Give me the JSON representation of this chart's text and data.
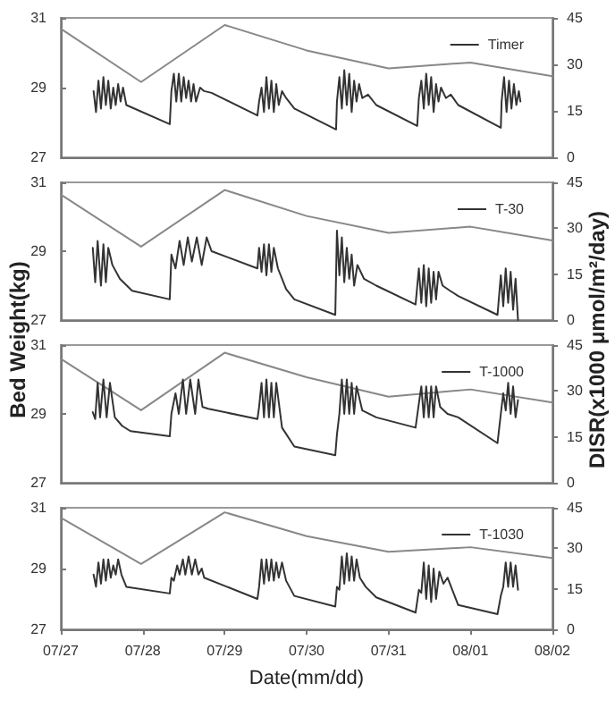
{
  "chart_data": [
    {
      "type": "line",
      "xlim": [
        "--07-27",
        "--08-02"
      ],
      "ylim": [
        27,
        31
      ],
      "yticks": [
        27,
        29,
        31
      ],
      "y2lim": [
        0,
        45
      ],
      "y2ticks": [
        0,
        15,
        30,
        45
      ],
      "tick_labels": "y",
      "legend": "top right",
      "grid": false,
      "marker": "none",
      "series": [
        {
          "name": "Timer",
          "color": "#333333",
          "x": [
            "--07-27T09:36",
            "--07-27T10:19",
            "--07-27T11:02",
            "--07-27T11:46",
            "--07-27T12:29",
            "--07-27T13:12",
            "--07-27T13:55",
            "--07-27T14:38",
            "--07-27T15:22",
            "--07-27T16:05",
            "--07-27T16:48",
            "--07-27T17:31",
            "--07-27T18:14",
            "--07-27T19:12",
            "--07-28T07:55",
            "--07-28T08:24",
            "--07-28T09:07",
            "--07-28T09:50",
            "--07-28T10:34",
            "--07-28T11:17",
            "--07-28T12:00",
            "--07-28T12:43",
            "--07-28T13:26",
            "--07-28T14:10",
            "--07-28T14:53",
            "--07-28T15:36",
            "--07-28T16:48",
            "--07-28T18:00",
            "--07-28T20:10",
            "--07-29T09:36",
            "--07-29T10:05",
            "--07-29T10:48",
            "--07-29T11:31",
            "--07-29T12:14",
            "--07-29T12:58",
            "--07-29T13:41",
            "--07-29T14:24",
            "--07-29T15:07",
            "--07-29T15:50",
            "--07-29T16:48",
            "--07-29T18:00",
            "--07-29T20:24",
            "--07-30T08:38",
            "--07-30T08:53",
            "--07-30T09:36",
            "--07-30T10:19",
            "--07-30T11:02",
            "--07-30T11:46",
            "--07-30T12:29",
            "--07-30T13:12",
            "--07-30T13:55",
            "--07-30T14:38",
            "--07-30T15:22",
            "--07-30T16:19",
            "--07-30T18:00",
            "--07-30T20:24",
            "--07-31T08:24",
            "--07-31T08:53",
            "--07-31T09:36",
            "--07-31T10:19",
            "--07-31T11:02",
            "--07-31T11:46",
            "--07-31T12:29",
            "--07-31T13:12",
            "--07-31T13:55",
            "--07-31T14:38",
            "--07-31T15:22",
            "--07-31T16:48",
            "--07-31T18:14",
            "--07-31T20:24",
            "--08-01T08:53",
            "--08-01T09:07",
            "--08-01T09:50",
            "--08-01T10:34",
            "--08-01T11:17",
            "--08-01T12:00",
            "--08-01T12:43",
            "--08-01T13:26",
            "--08-01T14:10",
            "--08-01T14:38"
          ],
          "values": [
            28.9,
            28.3,
            29.2,
            28.4,
            29.3,
            28.5,
            29.2,
            28.4,
            29.0,
            28.5,
            29.1,
            28.6,
            29.0,
            28.5,
            27.95,
            28.9,
            29.4,
            28.6,
            29.4,
            28.6,
            29.3,
            28.7,
            29.2,
            28.6,
            29.1,
            28.6,
            29.0,
            28.9,
            28.85,
            28.2,
            28.6,
            29.0,
            28.3,
            29.3,
            28.4,
            29.2,
            28.3,
            29.1,
            28.5,
            28.9,
            28.7,
            28.4,
            27.8,
            28.6,
            29.3,
            28.4,
            29.5,
            28.5,
            29.4,
            28.3,
            29.2,
            28.6,
            29.1,
            28.7,
            28.8,
            28.5,
            27.9,
            28.7,
            29.2,
            28.4,
            29.4,
            28.5,
            29.3,
            28.3,
            29.1,
            28.6,
            29.0,
            28.7,
            28.8,
            28.5,
            27.85,
            28.6,
            29.3,
            28.3,
            29.2,
            28.4,
            29.1,
            28.5,
            28.9,
            28.6
          ]
        },
        {
          "color": "#888888",
          "axis": "y2",
          "x": [
            "--07-27",
            "--07-27T23:31",
            "--07-29",
            "--07-30",
            "--07-31",
            "--08-01",
            "--08-02"
          ],
          "values": [
            41.5,
            24.3,
            42.7,
            34.5,
            28.7,
            30.6,
            26.2
          ]
        }
      ]
    },
    {
      "type": "line",
      "xlim": [
        "--07-27",
        "--08-02"
      ],
      "ylim": [
        27,
        31
      ],
      "yticks": [
        27,
        29,
        31
      ],
      "y2lim": [
        0,
        45
      ],
      "y2ticks": [
        0,
        15,
        30,
        45
      ],
      "tick_labels": "y",
      "legend": "top right",
      "grid": false,
      "marker": "none",
      "ylabel": "Bed Weight(kg)",
      "y2label": "DISR(x1000 μmol/m²/day)",
      "series": [
        {
          "name": "T-30",
          "color": "#333333",
          "x": [
            "--07-27T09:22",
            "--07-27T10:05",
            "--07-27T10:48",
            "--07-27T11:46",
            "--07-27T12:29",
            "--07-27T13:12",
            "--07-27T13:55",
            "--07-27T15:07",
            "--07-27T17:17",
            "--07-27T20:53",
            "--07-28T07:55",
            "--07-28T08:24",
            "--07-28T09:36",
            "--07-28T10:48",
            "--07-28T12:00",
            "--07-28T13:12",
            "--07-28T14:24",
            "--07-28T15:50",
            "--07-28T17:17",
            "--07-28T18:43",
            "--07-28T20:10",
            "--07-29T09:36",
            "--07-29T10:05",
            "--07-29T10:48",
            "--07-29T11:31",
            "--07-29T12:14",
            "--07-29T12:58",
            "--07-29T13:41",
            "--07-29T14:24",
            "--07-29T15:36",
            "--07-29T18:00",
            "--07-29T20:24",
            "--07-30T08:24",
            "--07-30T08:53",
            "--07-30T09:36",
            "--07-30T10:19",
            "--07-30T11:02",
            "--07-30T11:46",
            "--07-30T12:29",
            "--07-30T13:12",
            "--07-30T13:55",
            "--07-30T14:53",
            "--07-30T16:48",
            "--07-30T20:24",
            "--07-31T07:55",
            "--07-31T08:53",
            "--07-31T09:36",
            "--07-31T10:19",
            "--07-31T11:02",
            "--07-31T11:46",
            "--07-31T12:29",
            "--07-31T13:12",
            "--07-31T13:55",
            "--07-31T14:38",
            "--07-31T15:50",
            "--07-31T18:00",
            "--07-31T20:24",
            "--08-01T07:55",
            "--08-01T08:53",
            "--08-01T09:36",
            "--08-01T10:19",
            "--08-01T11:02",
            "--08-01T11:46",
            "--08-01T12:29",
            "--08-01T13:12",
            "--08-01T13:55"
          ],
          "values": [
            29.1,
            28.1,
            29.3,
            28.0,
            29.2,
            28.1,
            29.1,
            28.6,
            28.2,
            27.85,
            27.6,
            28.9,
            28.5,
            29.3,
            28.6,
            29.4,
            28.7,
            29.4,
            28.6,
            29.4,
            29.0,
            28.5,
            29.1,
            28.4,
            29.2,
            28.3,
            29.2,
            28.4,
            29.1,
            28.5,
            27.9,
            27.6,
            27.15,
            29.6,
            28.3,
            29.4,
            28.1,
            29.1,
            28.2,
            28.9,
            28.0,
            28.6,
            28.2,
            28.0,
            27.45,
            28.5,
            27.5,
            28.6,
            27.4,
            28.5,
            27.5,
            28.4,
            27.6,
            28.4,
            28.0,
            27.85,
            27.7,
            27.15,
            28.3,
            27.4,
            28.5,
            27.5,
            28.4,
            27.3,
            28.2,
            27.0
          ]
        },
        {
          "color": "#888888",
          "axis": "y2",
          "x": [
            "--07-27",
            "--07-27T23:31",
            "--07-29",
            "--07-30",
            "--07-31",
            "--08-01",
            "--08-02"
          ],
          "values": [
            41,
            24,
            42.5,
            34,
            28.5,
            30.5,
            26
          ]
        }
      ]
    },
    {
      "type": "line",
      "xlim": [
        "--07-27",
        "--08-02"
      ],
      "ylim": [
        27,
        31
      ],
      "yticks": [
        27,
        29,
        31
      ],
      "y2lim": [
        0,
        45
      ],
      "y2ticks": [
        0,
        15,
        30,
        45
      ],
      "tick_labels": "y",
      "legend": "top right",
      "grid": false,
      "marker": "none",
      "series": [
        {
          "name": "T-1000",
          "color": "#333333",
          "x": [
            "--07-27T09:22",
            "--07-27T10:05",
            "--07-27T10:48",
            "--07-27T11:31",
            "--07-27T12:29",
            "--07-27T13:26",
            "--07-27T14:24",
            "--07-27T15:50",
            "--07-27T18:00",
            "--07-27T20:24",
            "--07-28T07:55",
            "--07-28T08:24",
            "--07-28T09:36",
            "--07-28T10:34",
            "--07-28T11:46",
            "--07-28T12:43",
            "--07-28T13:55",
            "--07-28T15:22",
            "--07-28T16:19",
            "--07-28T17:31",
            "--07-28T19:12",
            "--07-29T09:36",
            "--07-29T10:05",
            "--07-29T10:48",
            "--07-29T11:31",
            "--07-29T12:14",
            "--07-29T12:58",
            "--07-29T13:41",
            "--07-29T14:24",
            "--07-29T15:07",
            "--07-29T16:48",
            "--07-29T20:24",
            "--07-30T08:24",
            "--07-30T08:53",
            "--07-30T09:36",
            "--07-30T10:19",
            "--07-30T11:02",
            "--07-30T11:46",
            "--07-30T12:29",
            "--07-30T13:12",
            "--07-30T13:55",
            "--07-30T14:38",
            "--07-30T16:19",
            "--07-30T20:24",
            "--07-31T07:55",
            "--07-31T08:53",
            "--07-31T09:36",
            "--07-31T10:19",
            "--07-31T11:02",
            "--07-31T11:46",
            "--07-31T12:29",
            "--07-31T13:12",
            "--07-31T13:55",
            "--07-31T15:07",
            "--07-31T17:17",
            "--07-31T20:24",
            "--08-01T07:55",
            "--08-01T08:53",
            "--08-01T09:36",
            "--08-01T10:19",
            "--08-01T11:02",
            "--08-01T11:46",
            "--08-01T12:29",
            "--08-01T13:12",
            "--08-01T13:55"
          ],
          "values": [
            29.05,
            28.85,
            29.9,
            28.9,
            30.0,
            28.9,
            29.9,
            28.9,
            28.65,
            28.5,
            28.35,
            29.0,
            29.6,
            29.0,
            30.0,
            29.0,
            30.0,
            29.0,
            30.0,
            29.2,
            29.15,
            28.85,
            29.2,
            29.9,
            28.9,
            30.0,
            28.9,
            29.9,
            28.9,
            29.9,
            28.6,
            28.05,
            27.8,
            28.4,
            29.0,
            30.0,
            29.0,
            30.0,
            29.0,
            29.9,
            29.0,
            29.8,
            29.1,
            28.9,
            28.6,
            29.3,
            29.8,
            28.9,
            29.8,
            28.9,
            29.8,
            28.9,
            29.8,
            29.2,
            29.0,
            28.9,
            28.15,
            29.0,
            29.6,
            29.1,
            29.9,
            29.0,
            29.8,
            28.9,
            29.4
          ]
        },
        {
          "color": "#888888",
          "axis": "y2",
          "x": [
            "--07-27",
            "--07-27T23:31",
            "--07-29",
            "--07-30",
            "--07-31",
            "--08-01",
            "--08-02"
          ],
          "values": [
            40.5,
            23.7,
            42.5,
            34.5,
            28.1,
            30.5,
            26.2
          ]
        }
      ]
    },
    {
      "type": "line",
      "xlim": [
        "--07-27",
        "--08-02"
      ],
      "xticks": [
        {
          "value": "--07-27",
          "label": "07/27"
        },
        {
          "value": "--07-28",
          "label": "07/28"
        },
        {
          "value": "--07-29",
          "label": "07/29"
        },
        {
          "value": "--07-30",
          "label": "07/30"
        },
        {
          "value": "--07-31",
          "label": "07/31"
        },
        {
          "value": "--08-01",
          "label": "08/01"
        },
        {
          "value": "--08-02",
          "label": "08/02"
        }
      ],
      "ylim": [
        27,
        31
      ],
      "yticks": [
        27,
        29,
        31
      ],
      "y2lim": [
        0,
        45
      ],
      "y2ticks": [
        0,
        15,
        30,
        45
      ],
      "legend": "top right",
      "grid": false,
      "marker": "none",
      "xlabel": "Date(mm/dd)",
      "series": [
        {
          "name": "T-1030",
          "color": "#333333",
          "x": [
            "--07-27T09:36",
            "--07-27T10:19",
            "--07-27T11:02",
            "--07-27T11:46",
            "--07-27T12:29",
            "--07-27T13:12",
            "--07-27T13:55",
            "--07-27T14:38",
            "--07-27T15:22",
            "--07-27T16:05",
            "--07-27T16:48",
            "--07-27T17:46",
            "--07-27T19:12",
            "--07-28T07:55",
            "--07-28T08:24",
            "--07-28T09:07",
            "--07-28T10:05",
            "--07-28T10:48",
            "--07-28T11:46",
            "--07-28T12:29",
            "--07-28T13:26",
            "--07-28T14:24",
            "--07-28T15:22",
            "--07-28T16:19",
            "--07-28T17:17",
            "--07-28T18:00",
            "--07-29T09:36",
            "--07-29T10:05",
            "--07-29T10:48",
            "--07-29T11:31",
            "--07-29T12:14",
            "--07-29T12:58",
            "--07-29T13:41",
            "--07-29T14:24",
            "--07-29T15:07",
            "--07-29T15:50",
            "--07-29T16:48",
            "--07-29T18:00",
            "--07-29T20:24",
            "--07-30T08:24",
            "--07-30T08:53",
            "--07-30T09:36",
            "--07-30T10:19",
            "--07-30T11:02",
            "--07-30T11:46",
            "--07-30T12:29",
            "--07-30T13:12",
            "--07-30T13:55",
            "--07-30T14:38",
            "--07-30T15:36",
            "--07-30T17:17",
            "--07-30T20:24",
            "--07-31T07:55",
            "--07-31T08:53",
            "--07-31T09:36",
            "--07-31T10:19",
            "--07-31T11:02",
            "--07-31T11:46",
            "--07-31T12:29",
            "--07-31T13:12",
            "--07-31T13:55",
            "--07-31T14:53",
            "--07-31T16:05",
            "--07-31T17:17",
            "--07-31T20:24",
            "--08-01T07:55",
            "--08-01T08:53",
            "--08-01T09:36",
            "--08-01T10:19",
            "--08-01T11:02",
            "--08-01T11:46",
            "--08-01T12:29",
            "--08-01T13:12",
            "--08-01T13:55"
          ],
          "values": [
            28.8,
            28.4,
            29.2,
            28.5,
            29.3,
            28.6,
            29.3,
            28.7,
            29.1,
            28.8,
            29.3,
            28.8,
            28.4,
            28.18,
            28.7,
            28.6,
            29.1,
            28.8,
            29.3,
            28.8,
            29.4,
            28.8,
            29.3,
            28.8,
            29.0,
            28.7,
            28.0,
            28.4,
            29.3,
            28.5,
            29.3,
            28.6,
            29.3,
            28.6,
            29.2,
            28.7,
            29.2,
            28.6,
            28.1,
            27.75,
            28.4,
            28.3,
            29.4,
            28.5,
            29.5,
            28.6,
            29.4,
            28.6,
            29.3,
            28.7,
            28.4,
            28.05,
            27.55,
            28.3,
            28.2,
            29.2,
            28.0,
            29.1,
            27.9,
            29.0,
            28.0,
            28.9,
            28.5,
            28.7,
            27.8,
            27.5,
            28.1,
            28.4,
            29.2,
            28.4,
            29.2,
            28.4,
            29.1,
            28.3
          ]
        },
        {
          "color": "#888888",
          "axis": "y2",
          "x": [
            "--07-27",
            "--07-27T23:31",
            "--07-29",
            "--07-30",
            "--07-31",
            "--08-01",
            "--08-02"
          ],
          "values": [
            41.3,
            24.2,
            43.3,
            34.5,
            28.7,
            30.4,
            26.4
          ]
        }
      ]
    }
  ]
}
